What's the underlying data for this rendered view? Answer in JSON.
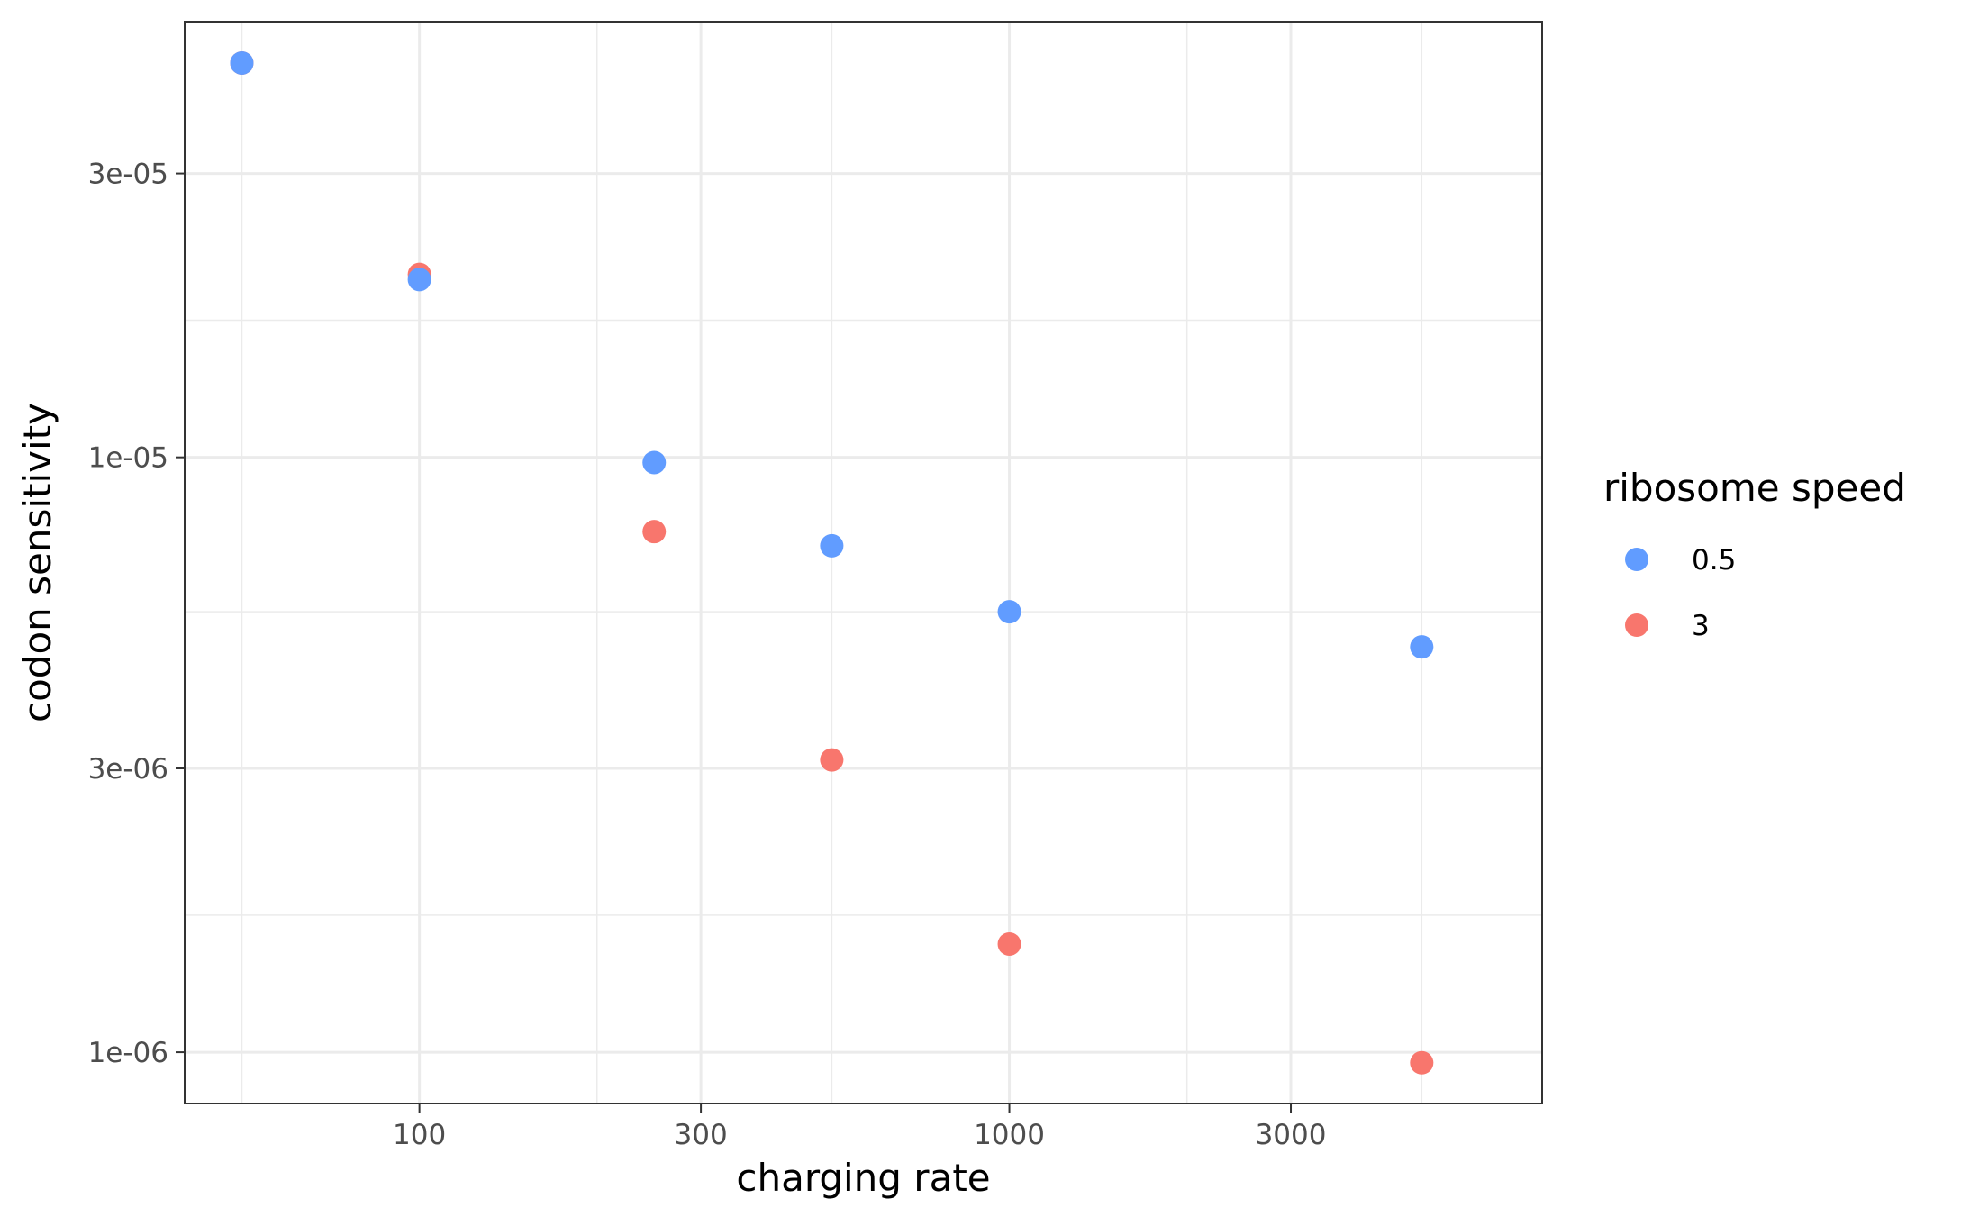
{
  "chart_data": {
    "type": "scatter",
    "title": "",
    "xlabel": "charging rate",
    "ylabel": "codon sensitivity",
    "x_scale": "log10",
    "y_scale": "log10",
    "xlim": [
      40,
      8000
    ],
    "ylim": [
      8.2e-07,
      5.4e-05
    ],
    "x_ticks": [
      100,
      300,
      1000,
      3000
    ],
    "x_tick_labels": [
      "100",
      "300",
      "1000",
      "3000"
    ],
    "x_minor_ticks": [
      50,
      200,
      500,
      2000,
      5000
    ],
    "y_ticks": [
      1e-06,
      3e-06,
      1e-05,
      3e-05
    ],
    "y_tick_labels": [
      "1e-06",
      "3e-06",
      "1e-05",
      "3e-05"
    ],
    "y_minor_ticks": [
      1.7e-06,
      5.5e-06,
      1.7e-05
    ],
    "grid": true,
    "legend": {
      "title": "ribosome speed",
      "position": "right"
    },
    "series": [
      {
        "name": "3",
        "color": "#F8766D",
        "x": [
          50,
          100,
          250,
          500,
          1000,
          5000
        ],
        "y": [
          4.6e-05,
          2.03e-05,
          7.5e-06,
          3.1e-06,
          1.52e-06,
          9.6e-07
        ]
      },
      {
        "name": "0.5",
        "color": "#619CFF",
        "x": [
          50,
          100,
          250,
          500,
          1000,
          5000
        ],
        "y": [
          4.6e-05,
          1.99e-05,
          9.8e-06,
          7.1e-06,
          5.5e-06,
          4.8e-06
        ]
      }
    ],
    "legend_order": [
      "0.5",
      "3"
    ]
  }
}
